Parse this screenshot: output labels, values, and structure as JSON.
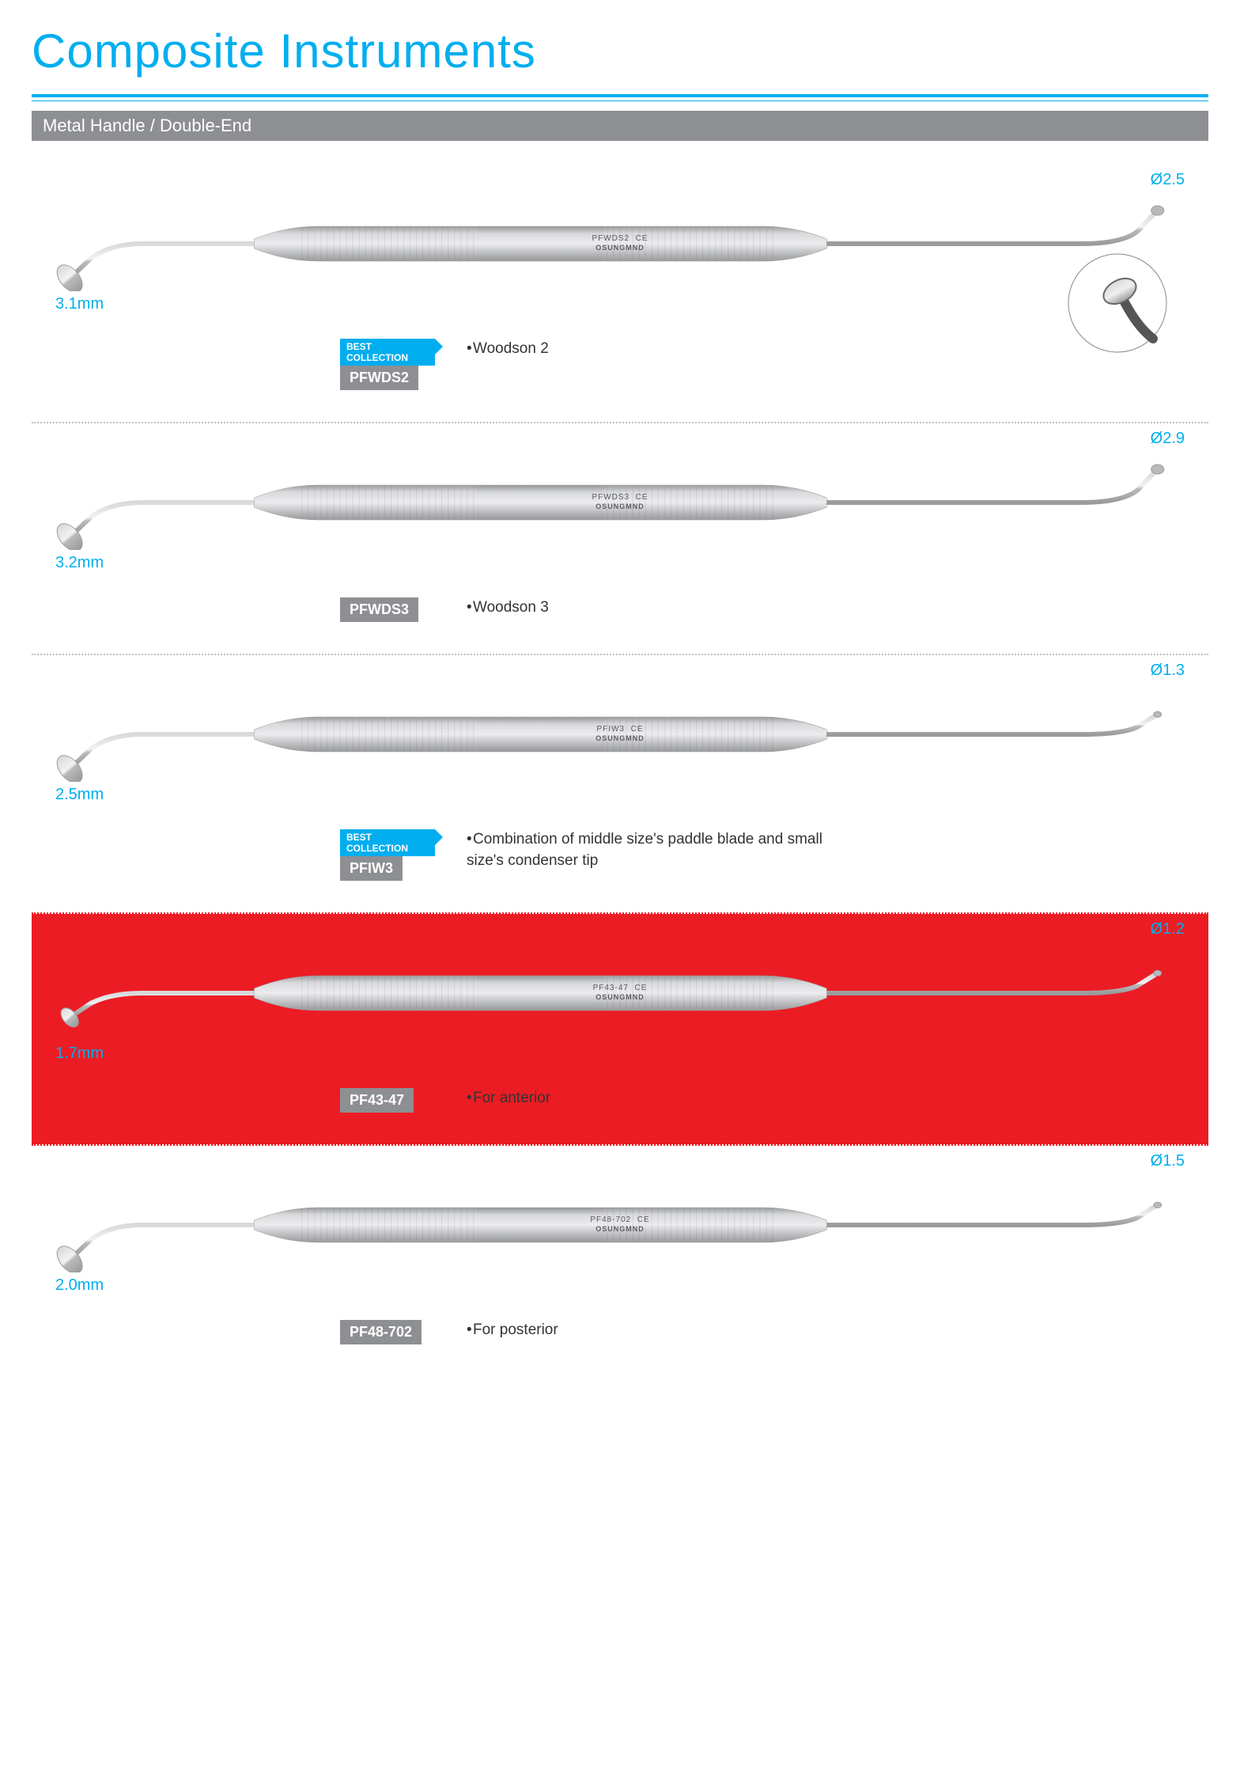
{
  "page": {
    "title": "Composite Instruments",
    "section_bar": "Metal Handle / Double-End",
    "colors": {
      "accent": "#00aeef",
      "chip_bg": "#8d8f92",
      "highlight_bg": "#ec1c24",
      "text": "#333333",
      "metal_light": "#d8d9db",
      "metal_mid": "#b8b9bb",
      "metal_dark": "#9a9b9d"
    }
  },
  "products": [
    {
      "sku": "PFWDS2",
      "engraving_model": "PFWDS2",
      "brand": "OSUNGMND",
      "best_collection": true,
      "dim_left": "3.1mm",
      "dim_right": "Ø2.5",
      "desc": "Woodson 2",
      "highlight": false,
      "zoom_circle": true,
      "left_tip": "paddle",
      "right_tip": "condenser"
    },
    {
      "sku": "PFWDS3",
      "engraving_model": "PFWDS3",
      "brand": "OSUNGMND",
      "best_collection": false,
      "dim_left": "3.2mm",
      "dim_right": "Ø2.9",
      "desc": "Woodson 3",
      "highlight": false,
      "zoom_circle": false,
      "left_tip": "paddle",
      "right_tip": "condenser"
    },
    {
      "sku": "PFIW3",
      "engraving_model": "PFIW3",
      "brand": "OSUNGMND",
      "best_collection": true,
      "dim_left": "2.5mm",
      "dim_right": "Ø1.3",
      "desc": "Combination of middle size's paddle blade and small size's condenser tip",
      "highlight": false,
      "zoom_circle": false,
      "left_tip": "paddle",
      "right_tip": "condenser-small"
    },
    {
      "sku": "PF43-47",
      "engraving_model": "PF43-47",
      "brand": "OSUNGMND",
      "best_collection": false,
      "dim_left": "1.7mm",
      "dim_right": "Ø1.2",
      "desc": "For anterior",
      "highlight": true,
      "zoom_circle": false,
      "left_tip": "paddle-small",
      "right_tip": "condenser-small"
    },
    {
      "sku": "PF48-702",
      "engraving_model": "PF48-702",
      "brand": "OSUNGMND",
      "best_collection": false,
      "dim_left": "2.0mm",
      "dim_right": "Ø1.5",
      "desc": "For posterior",
      "highlight": false,
      "zoom_circle": false,
      "left_tip": "paddle",
      "right_tip": "condenser-small"
    }
  ],
  "labels": {
    "best_collection": "BEST COLLECTION"
  }
}
